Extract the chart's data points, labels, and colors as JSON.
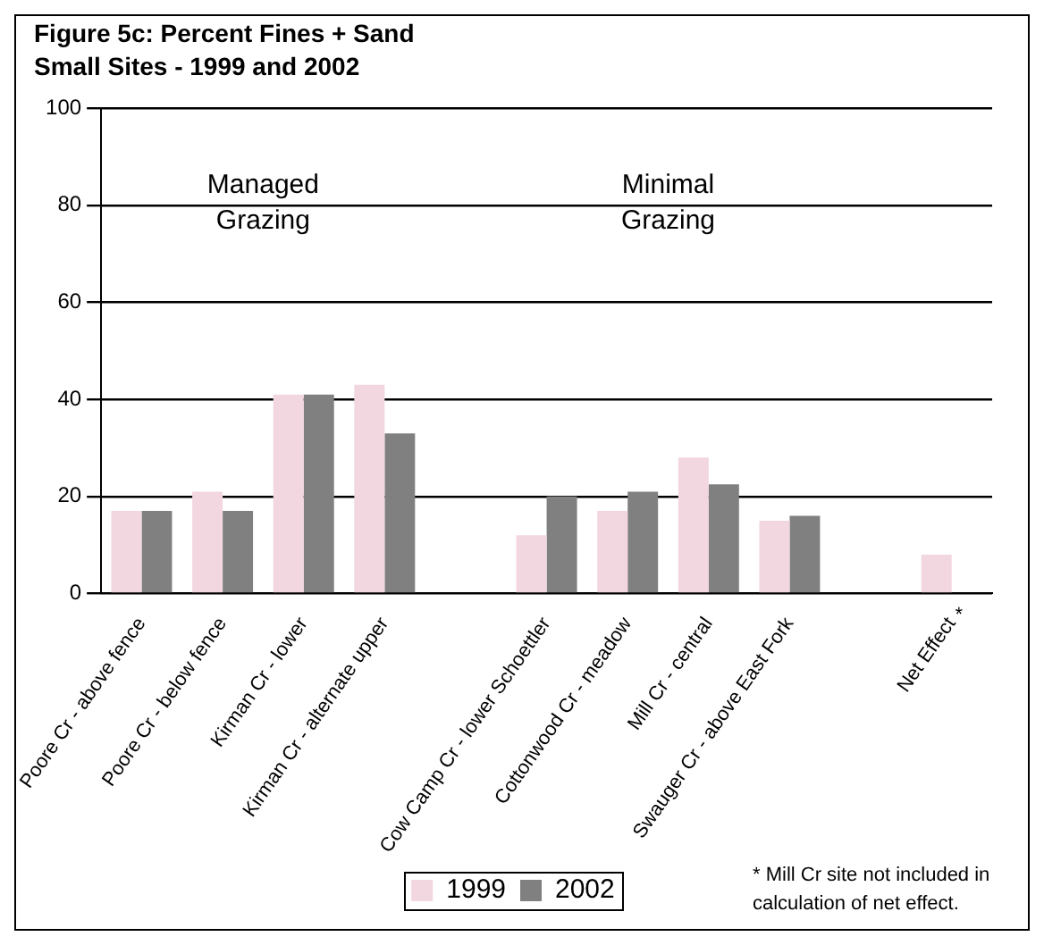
{
  "chart_data": {
    "type": "bar",
    "title": "Figure 5c: Percent Fines + Sand",
    "subtitle": "Small Sites - 1999 and 2002",
    "categories": [
      "Poore Cr - above fence",
      "Poore Cr - below fence",
      "Kirman Cr - lower",
      "Kirman Cr - alternate upper",
      null,
      "Cow Camp Cr - lower Schoettler",
      "Cottonwood Cr - meadow",
      "Mill Cr - central",
      "Swauger Cr - above East Fork",
      null,
      "Net Effect"
    ],
    "series": [
      {
        "name": "1999",
        "color": "#f2d6e0",
        "values": [
          17,
          21,
          41,
          43,
          null,
          12,
          17,
          28,
          15,
          null,
          8
        ]
      },
      {
        "name": "2002",
        "color": "#808080",
        "values": [
          17,
          17,
          41,
          33,
          null,
          20,
          21,
          22.5,
          16,
          null,
          null
        ]
      }
    ],
    "ylim": [
      0,
      100
    ],
    "yticks": [
      0,
      20,
      40,
      60,
      80,
      100
    ],
    "grid": "y",
    "legend": "bottom",
    "annotations": [
      "Managed Grazing",
      "Minimal Grazing",
      "*",
      "* Mill Cr site not included in calculation of net effect."
    ]
  }
}
